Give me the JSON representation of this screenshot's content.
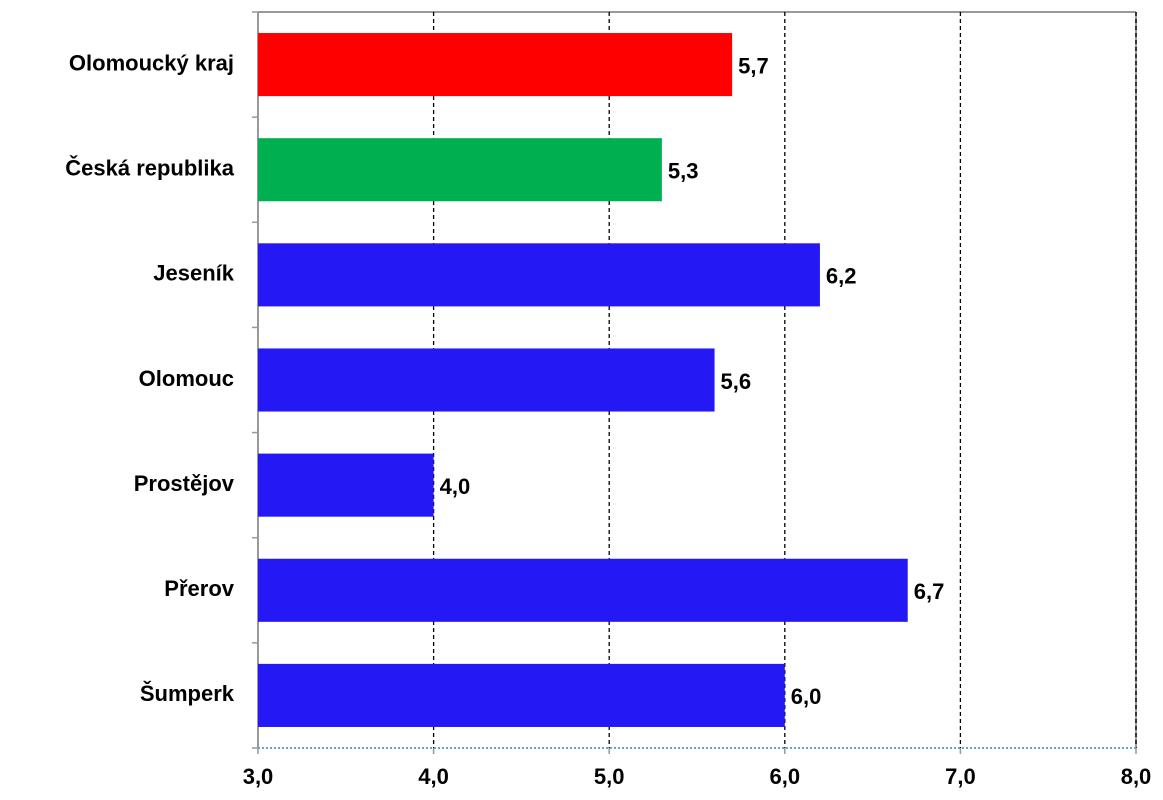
{
  "chart_data": {
    "type": "bar",
    "orientation": "horizontal",
    "categories": [
      "Olomoucký kraj",
      "Česká republika",
      "Jeseník",
      "Olomouc",
      "Prostějov",
      "Přerov",
      "Šumperk"
    ],
    "values": [
      5.7,
      5.3,
      6.2,
      5.6,
      4.0,
      6.7,
      6.0
    ],
    "value_labels": [
      "5,7",
      "5,3",
      "6,2",
      "5,6",
      "4,0",
      "6,7",
      "6,0"
    ],
    "colors": [
      "#ff0000",
      "#00b050",
      "#2418f5",
      "#2418f5",
      "#2418f5",
      "#2418f5",
      "#2418f5"
    ],
    "xlim": [
      3,
      8
    ],
    "xticks": [
      {
        "value": 3,
        "label": "3,0"
      },
      {
        "value": 4,
        "label": "4,0"
      },
      {
        "value": 5,
        "label": "5,0"
      },
      {
        "value": 6,
        "label": "6,0"
      },
      {
        "value": 7,
        "label": "7,0"
      },
      {
        "value": 8,
        "label": "8,0"
      }
    ],
    "grid": true
  }
}
